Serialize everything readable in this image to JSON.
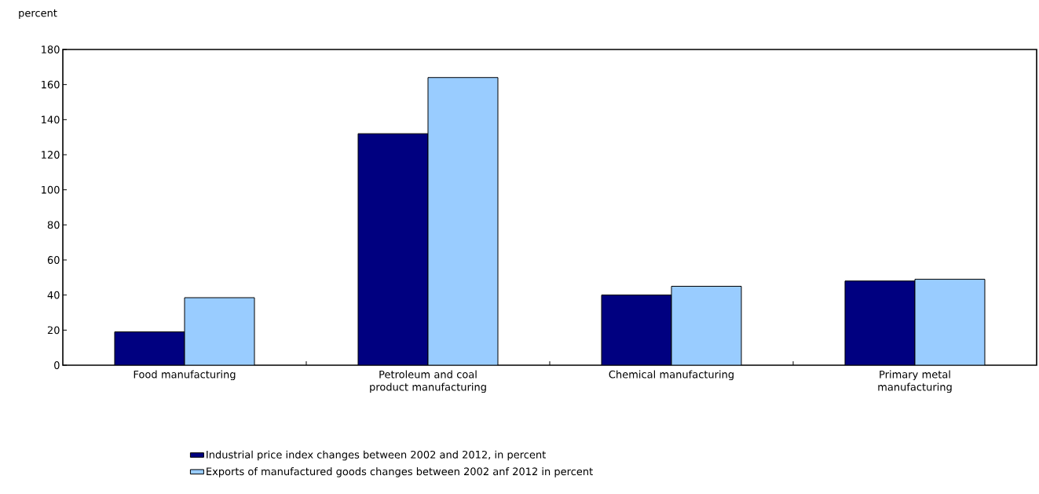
{
  "chart_data": {
    "type": "bar",
    "ylabel": "percent",
    "categories": [
      "Food manufacturing",
      "Petroleum and coal product manufacturing",
      "Chemical manufacturing",
      "Primary metal manufacturing"
    ],
    "series": [
      {
        "name": "Industrial price index changes between 2002 and 2012, in percent",
        "color": "#000080",
        "values": [
          19,
          132,
          40,
          48
        ]
      },
      {
        "name": "Exports of manufactured goods changes between 2002 anf 2012 in percent",
        "color": "#99ccff",
        "values": [
          38.5,
          164,
          45,
          49
        ]
      }
    ],
    "ylim": [
      0,
      180
    ],
    "yticks": [
      0,
      20,
      40,
      60,
      80,
      100,
      120,
      140,
      160,
      180
    ],
    "grid": false,
    "legend": "bottom"
  }
}
